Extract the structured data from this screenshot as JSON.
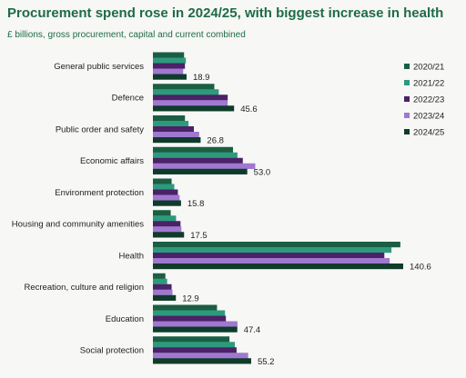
{
  "title": "Procurement spend rose in 2024/25, with biggest increase in health",
  "subtitle": "£ billions, gross procurement, capital and current combined",
  "chart_data": {
    "type": "bar",
    "orientation": "horizontal",
    "title": "Procurement spend rose in 2024/25, with biggest increase in health",
    "subtitle": "£ billions, gross procurement, capital and current combined",
    "legend_position": "right",
    "grid": false,
    "xlim": [
      0,
      145
    ],
    "categories": [
      "General public services",
      "Defence",
      "Public order and safety",
      "Economic affairs",
      "Environment protection",
      "Housing and community amenities",
      "Health",
      "Recreation, culture and religion",
      "Education",
      "Social protection"
    ],
    "series": [
      {
        "name": "2020/21",
        "color": "#1a5e44",
        "values": [
          17.5,
          34.5,
          18.0,
          45.0,
          10.5,
          10.0,
          139.0,
          7.0,
          36.0,
          43.0
        ]
      },
      {
        "name": "2021/22",
        "color": "#2e9a7c",
        "values": [
          18.5,
          37.0,
          20.0,
          47.5,
          12.0,
          13.0,
          134.0,
          8.0,
          40.5,
          46.0
        ]
      },
      {
        "name": "2022/23",
        "color": "#4b2168",
        "values": [
          18.0,
          42.0,
          23.0,
          50.5,
          14.0,
          15.5,
          130.0,
          10.5,
          41.0,
          47.0
        ]
      },
      {
        "name": "2023/24",
        "color": "#a078d0",
        "values": [
          17.0,
          42.0,
          26.0,
          57.5,
          15.0,
          16.0,
          133.0,
          11.0,
          47.5,
          53.5
        ]
      },
      {
        "name": "2024/25",
        "color": "#0f3b2a",
        "values": [
          18.9,
          45.6,
          26.8,
          53.0,
          15.8,
          17.5,
          140.6,
          12.9,
          47.4,
          55.2
        ]
      }
    ],
    "value_labels": [
      "18.9",
      "45.6",
      "26.8",
      "53.0",
      "15.8",
      "17.5",
      "140.6",
      "12.9",
      "47.4",
      "55.2"
    ]
  }
}
